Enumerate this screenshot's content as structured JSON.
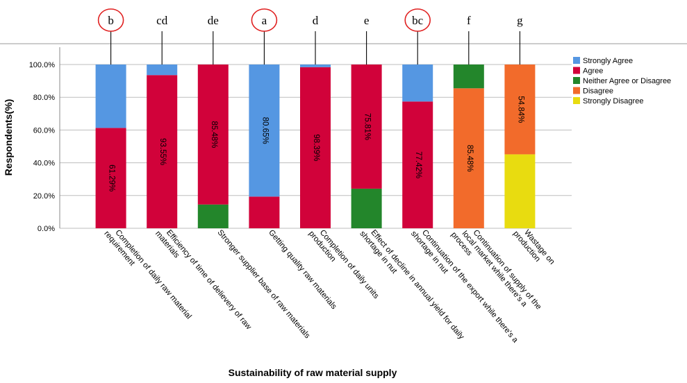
{
  "chart_data": {
    "type": "bar",
    "stacked": true,
    "xlabel": "Sustainability of raw material supply",
    "ylabel": "Respondents(%)",
    "ylim": [
      0,
      100
    ],
    "yticks": [
      "0.0%",
      "20.0%",
      "40.0%",
      "60.0%",
      "80.0%",
      "100.0%"
    ],
    "grid": true,
    "legend_position": "top-right",
    "categories": [
      "Completion of daily raw material requirement",
      "Efficiency of time of delievery of raw materials",
      "Stronger supplier base of raw materials",
      "Getting quality raw materials",
      "Completion of daily units production",
      "Effect of decline in annual yield for daily shortage in nut",
      "Continuation of the export while there's a shortage in nut",
      "Continuation of supply of the local market while there's a process",
      "Wastage on production"
    ],
    "category_label_lines": [
      [
        "Completion of daily raw material",
        "requirement"
      ],
      [
        "Efficiency of time of delievery of raw",
        "materials"
      ],
      [
        "Stronger supplier base of raw materials"
      ],
      [
        "Getting quality raw materials"
      ],
      [
        "Completion of daily units",
        "production"
      ],
      [
        "Effect of decline in annual yield for daily",
        "shortage in nut"
      ],
      [
        "Continuation of the export while there's a",
        "shortage in nut"
      ],
      [
        "Continuation of supply of the",
        "local market while there's a",
        "process"
      ],
      [
        "Wastage on",
        "production"
      ]
    ],
    "series": [
      {
        "name": "Strongly Disagree",
        "color": "#e8dc10",
        "values": [
          0,
          0,
          0,
          0,
          0,
          0,
          0,
          0,
          45.16
        ]
      },
      {
        "name": "Disagree",
        "color": "#f26b2b",
        "values": [
          0,
          0,
          0,
          0,
          0,
          0,
          0,
          85.48,
          54.84
        ]
      },
      {
        "name": "Neither Agree or Disagree",
        "color": "#23862b",
        "values": [
          0,
          0,
          14.52,
          0,
          0,
          24.19,
          0,
          14.52,
          0
        ]
      },
      {
        "name": "Agree",
        "color": "#d1023a",
        "values": [
          61.29,
          93.55,
          85.48,
          19.35,
          98.39,
          75.81,
          77.42,
          0,
          0
        ]
      },
      {
        "name": "Strongly Agree",
        "color": "#5597e2",
        "values": [
          38.71,
          6.45,
          0,
          80.65,
          1.61,
          0,
          22.58,
          0,
          0
        ]
      }
    ],
    "legend_order": [
      "Strongly Agree",
      "Agree",
      "Neither Agree or Disagree",
      "Disagree",
      "Strongly Disagree"
    ],
    "data_labels": [
      {
        "category_index": 0,
        "series": "Agree",
        "text": "61.29%"
      },
      {
        "category_index": 1,
        "series": "Agree",
        "text": "93.55%"
      },
      {
        "category_index": 2,
        "series": "Agree",
        "text": "85.48%"
      },
      {
        "category_index": 3,
        "series": "Strongly Agree",
        "text": "80.65%"
      },
      {
        "category_index": 4,
        "series": "Agree",
        "text": "98.39%"
      },
      {
        "category_index": 5,
        "series": "Agree",
        "text": "75.81%"
      },
      {
        "category_index": 6,
        "series": "Agree",
        "text": "77.42%"
      },
      {
        "category_index": 7,
        "series": "Disagree",
        "text": "85.48%"
      },
      {
        "category_index": 8,
        "series": "Disagree",
        "text": "54.84%"
      }
    ],
    "group_letters": [
      "b",
      "cd",
      "de",
      "a",
      "d",
      "e",
      "bc",
      "f",
      "g"
    ],
    "circled_letters": [
      0,
      3,
      6
    ],
    "circle_color": "#e02020"
  }
}
